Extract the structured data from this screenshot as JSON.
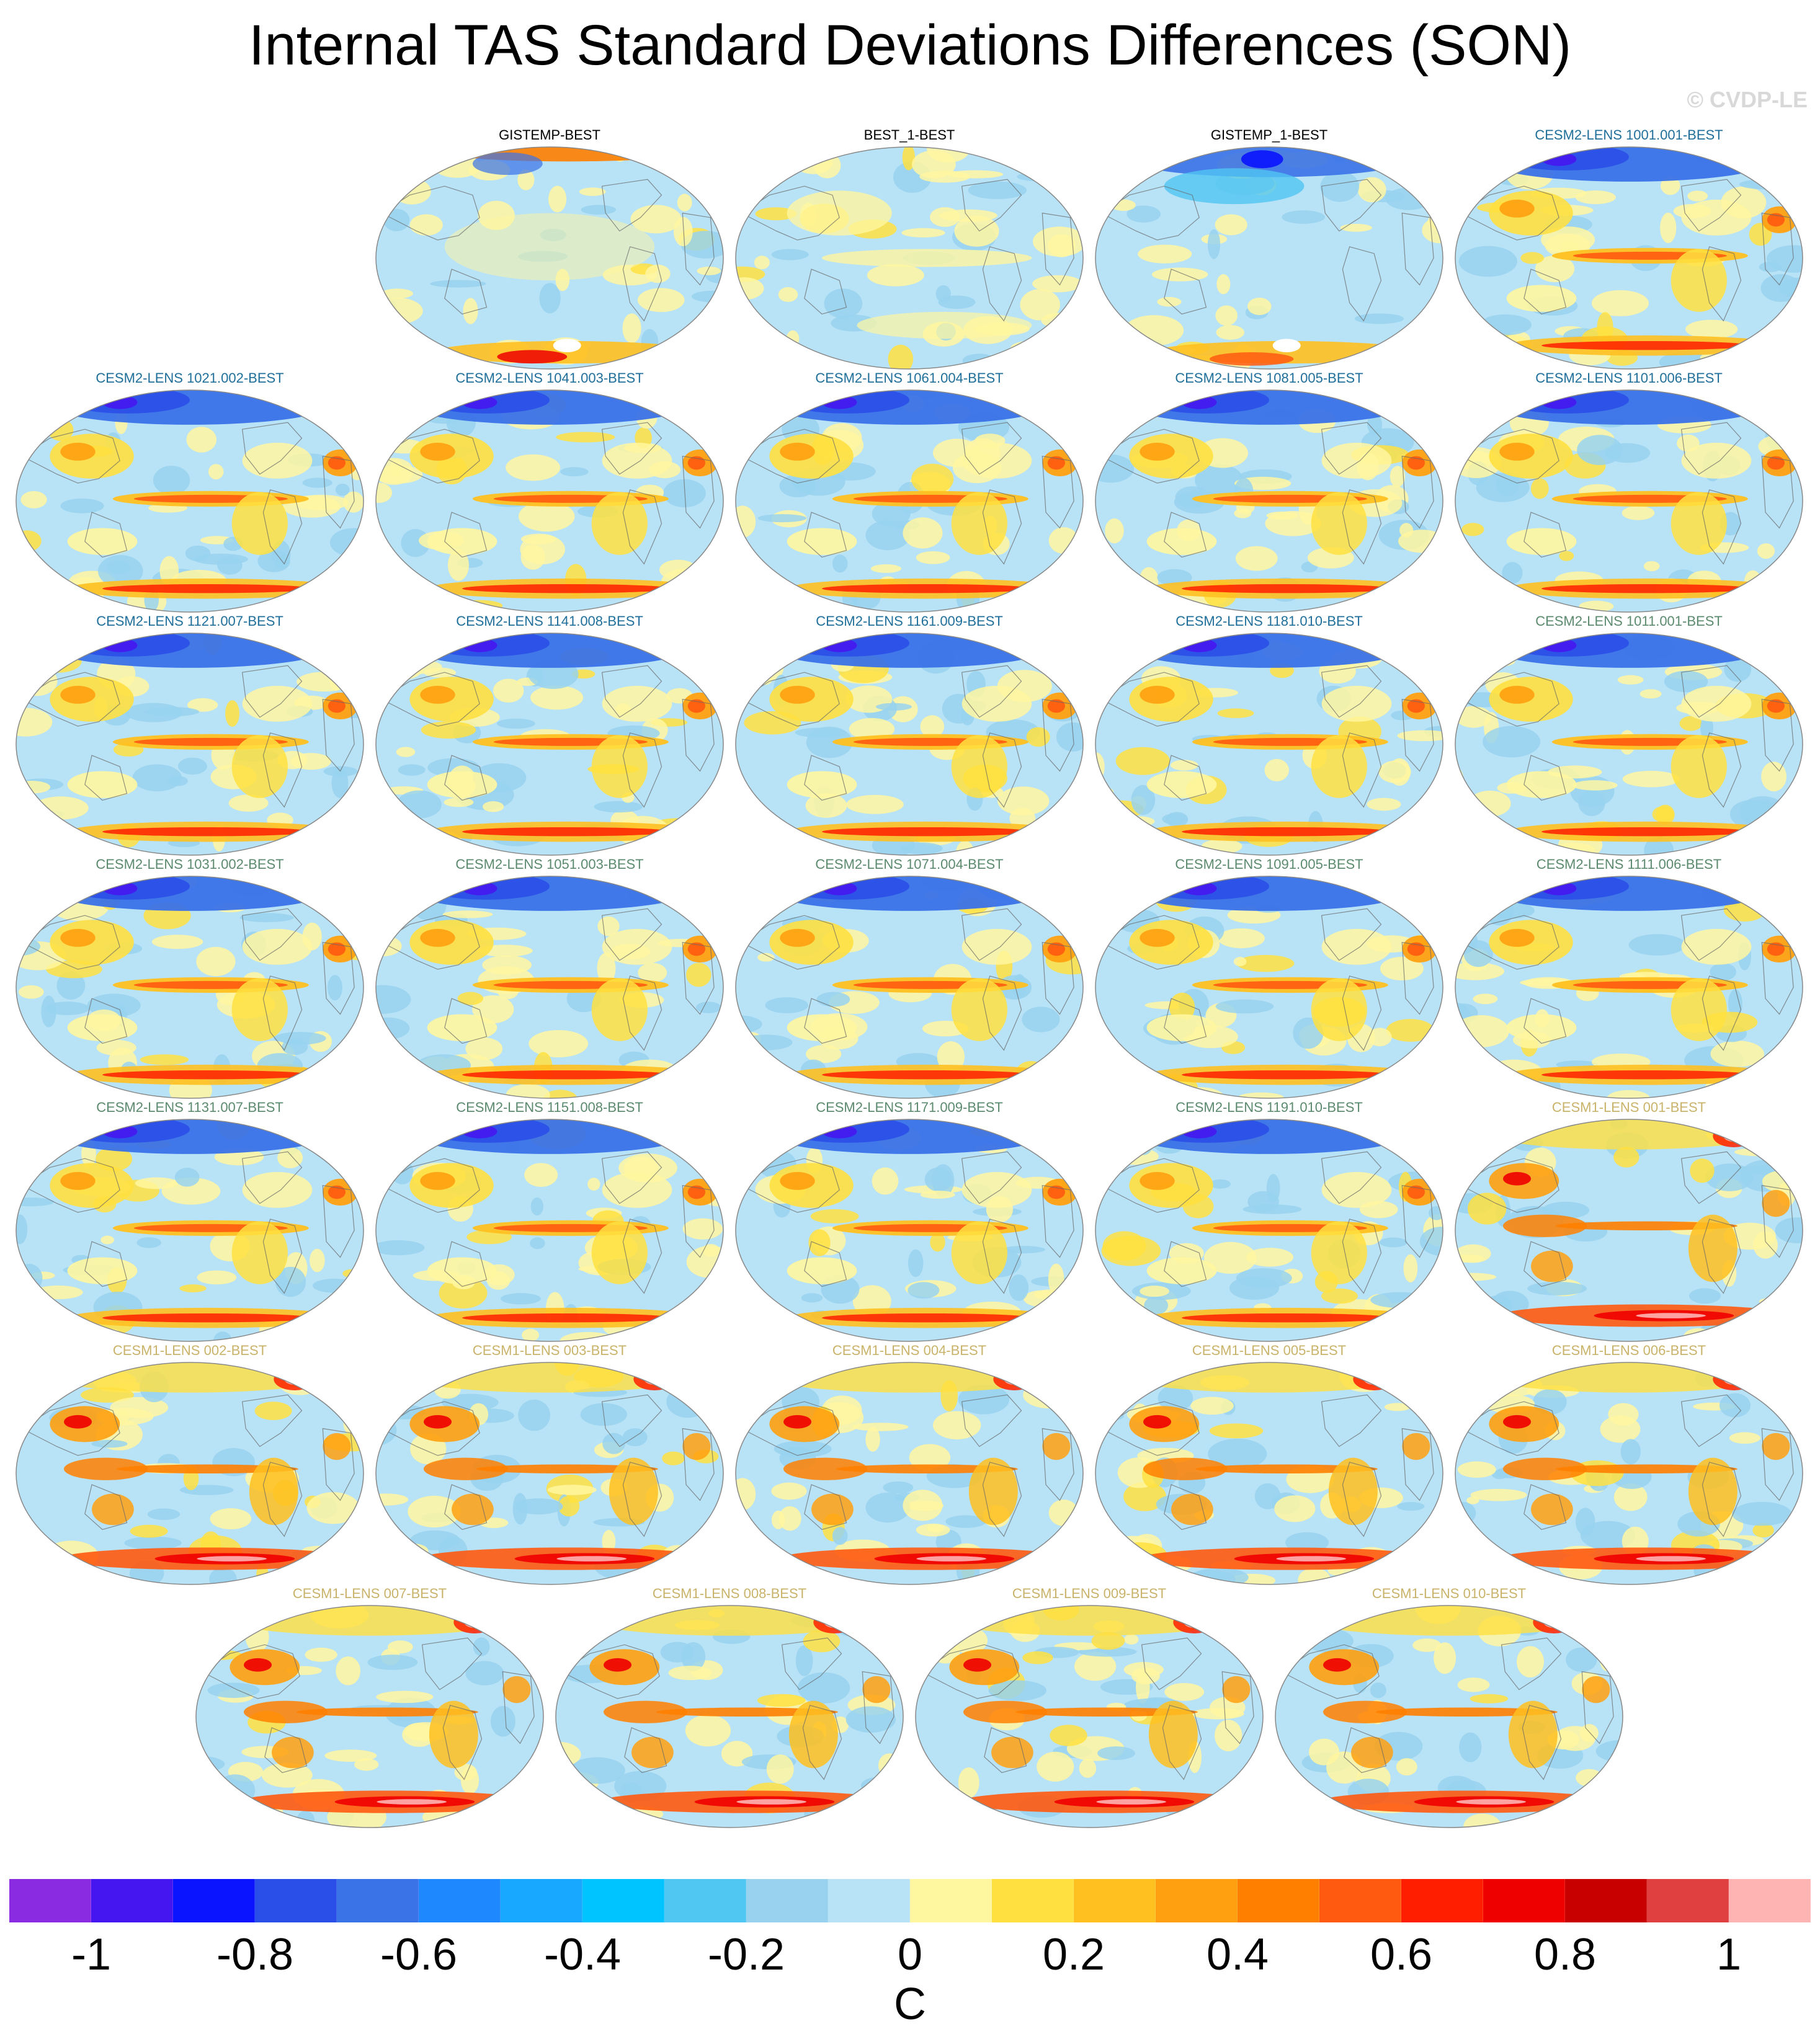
{
  "title": "Internal TAS Standard Deviations Differences (SON)",
  "watermark": "© CVDP-LE",
  "colorbar": {
    "units": "C",
    "tick_labels": [
      "-1",
      "-0.8",
      "-0.6",
      "-0.4",
      "-0.2",
      "0",
      "0.2",
      "0.4",
      "0.6",
      "0.8",
      "1"
    ],
    "colors": [
      "#8a2be2",
      "#4616f0",
      "#0a14ff",
      "#2a4ee8",
      "#3a72e8",
      "#1e88ff",
      "#18a8ff",
      "#00c4ff",
      "#50c6f2",
      "#98d2ee",
      "#b8e2f6",
      "#fff6a0",
      "#ffe040",
      "#ffc020",
      "#ffa010",
      "#ff8000",
      "#ff5a10",
      "#ff1e00",
      "#ee0000",
      "#c80000",
      "#e04040",
      "#ffb4b4"
    ]
  },
  "panels": [
    {
      "label": "GISTEMP-BEST",
      "color": "#000000",
      "pattern": "obs1"
    },
    {
      "label": "BEST_1-BEST",
      "color": "#000000",
      "pattern": "obs2"
    },
    {
      "label": "GISTEMP_1-BEST",
      "color": "#000000",
      "pattern": "obs3"
    },
    {
      "label": "CESM2-LENS 1001.001-BEST",
      "color": "#1f6f9a",
      "pattern": "cesm2"
    },
    {
      "label": "CESM2-LENS 1021.002-BEST",
      "color": "#1f6f9a",
      "pattern": "cesm2"
    },
    {
      "label": "CESM2-LENS 1041.003-BEST",
      "color": "#1f6f9a",
      "pattern": "cesm2"
    },
    {
      "label": "CESM2-LENS 1061.004-BEST",
      "color": "#1f6f9a",
      "pattern": "cesm2"
    },
    {
      "label": "CESM2-LENS 1081.005-BEST",
      "color": "#1f6f9a",
      "pattern": "cesm2"
    },
    {
      "label": "CESM2-LENS 1101.006-BEST",
      "color": "#1f6f9a",
      "pattern": "cesm2"
    },
    {
      "label": "CESM2-LENS 1121.007-BEST",
      "color": "#1f6f9a",
      "pattern": "cesm2"
    },
    {
      "label": "CESM2-LENS 1141.008-BEST",
      "color": "#1f6f9a",
      "pattern": "cesm2"
    },
    {
      "label": "CESM2-LENS 1161.009-BEST",
      "color": "#1f6f9a",
      "pattern": "cesm2"
    },
    {
      "label": "CESM2-LENS 1181.010-BEST",
      "color": "#1f6f9a",
      "pattern": "cesm2"
    },
    {
      "label": "CESM2-LENS 1011.001-BEST",
      "color": "#5b8a6e",
      "pattern": "cesm2"
    },
    {
      "label": "CESM2-LENS 1031.002-BEST",
      "color": "#5b8a6e",
      "pattern": "cesm2"
    },
    {
      "label": "CESM2-LENS 1051.003-BEST",
      "color": "#5b8a6e",
      "pattern": "cesm2"
    },
    {
      "label": "CESM2-LENS 1071.004-BEST",
      "color": "#5b8a6e",
      "pattern": "cesm2"
    },
    {
      "label": "CESM2-LENS 1091.005-BEST",
      "color": "#5b8a6e",
      "pattern": "cesm2"
    },
    {
      "label": "CESM2-LENS 1111.006-BEST",
      "color": "#5b8a6e",
      "pattern": "cesm2"
    },
    {
      "label": "CESM2-LENS 1131.007-BEST",
      "color": "#5b8a6e",
      "pattern": "cesm2"
    },
    {
      "label": "CESM2-LENS 1151.008-BEST",
      "color": "#5b8a6e",
      "pattern": "cesm2"
    },
    {
      "label": "CESM2-LENS 1171.009-BEST",
      "color": "#5b8a6e",
      "pattern": "cesm2"
    },
    {
      "label": "CESM2-LENS 1191.010-BEST",
      "color": "#5b8a6e",
      "pattern": "cesm2"
    },
    {
      "label": "CESM1-LENS 001-BEST",
      "color": "#c9b36a",
      "pattern": "cesm1"
    },
    {
      "label": "CESM1-LENS 002-BEST",
      "color": "#c9b36a",
      "pattern": "cesm1"
    },
    {
      "label": "CESM1-LENS 003-BEST",
      "color": "#c9b36a",
      "pattern": "cesm1"
    },
    {
      "label": "CESM1-LENS 004-BEST",
      "color": "#c9b36a",
      "pattern": "cesm1"
    },
    {
      "label": "CESM1-LENS 005-BEST",
      "color": "#c9b36a",
      "pattern": "cesm1"
    },
    {
      "label": "CESM1-LENS 006-BEST",
      "color": "#c9b36a",
      "pattern": "cesm1"
    },
    {
      "label": "CESM1-LENS 007-BEST",
      "color": "#c9b36a",
      "pattern": "cesm1"
    },
    {
      "label": "CESM1-LENS 008-BEST",
      "color": "#c9b36a",
      "pattern": "cesm1"
    },
    {
      "label": "CESM1-LENS 009-BEST",
      "color": "#c9b36a",
      "pattern": "cesm1"
    },
    {
      "label": "CESM1-LENS 010-BEST",
      "color": "#c9b36a",
      "pattern": "cesm1"
    }
  ]
}
